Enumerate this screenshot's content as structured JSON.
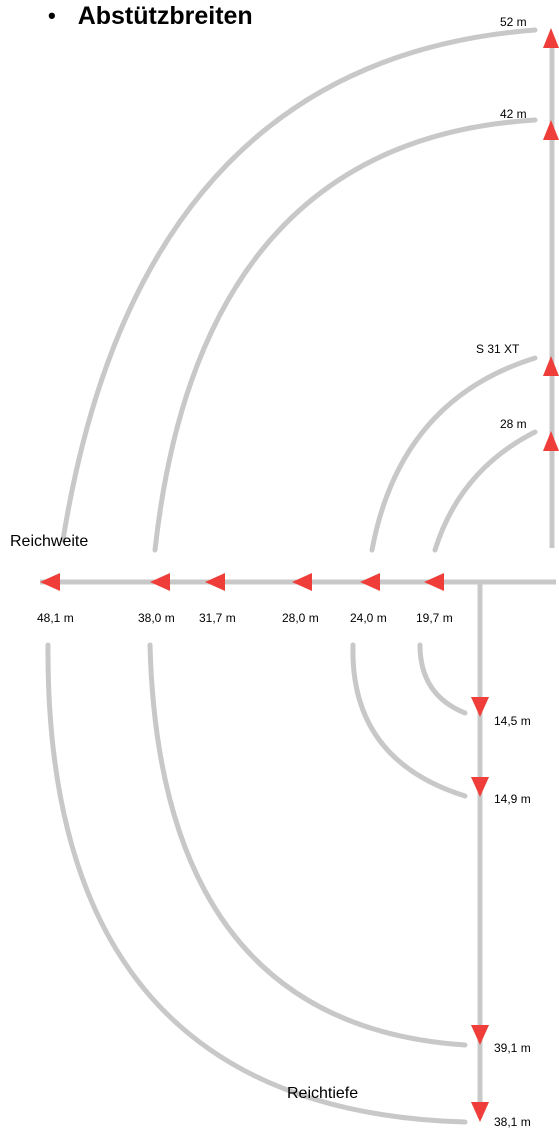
{
  "title": "Abstützbreiten",
  "colors": {
    "line": "#c8c8c8",
    "marker": "#ef3e3a",
    "text": "#000000"
  },
  "axes": {
    "horizontal_label": "Reichweite",
    "vertical_label": "Reichtiefe"
  },
  "upper_labels": [
    "52 m",
    "42 m",
    "S 31 XT",
    "28 m"
  ],
  "horizontal_labels": [
    "48,1 m",
    "38,0 m",
    "31,7 m",
    "28,0 m",
    "24,0 m",
    "19,7 m"
  ],
  "lower_labels": [
    "14,5 m",
    "14,9 m",
    "39,1 m",
    "38,1 m"
  ]
}
